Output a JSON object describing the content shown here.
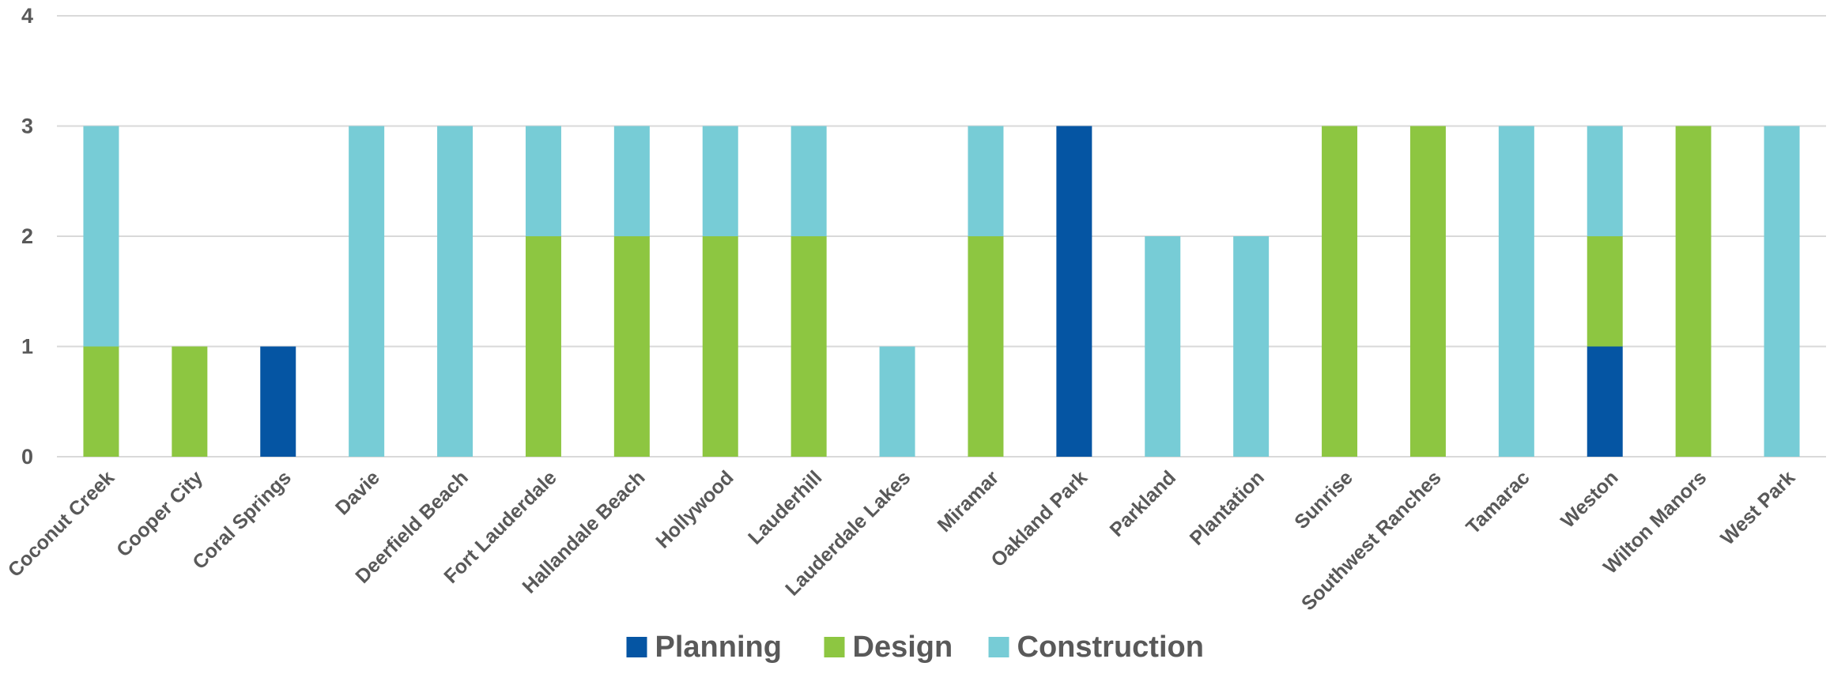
{
  "chart_data": {
    "type": "bar",
    "stacked": true,
    "title": "",
    "xlabel": "",
    "ylabel": "",
    "ylim": [
      0,
      4
    ],
    "yticks": [
      0,
      1,
      2,
      3,
      4
    ],
    "grid": true,
    "legend_position": "bottom",
    "categories": [
      "Coconut Creek",
      "Cooper City",
      "Coral Springs",
      "Davie",
      "Deerfield Beach",
      "Fort Lauderdale",
      "Hallandale Beach",
      "Hollywood",
      "Lauderhill",
      "Lauderdale Lakes",
      "Miramar",
      "Oakland Park",
      "Parkland",
      "Plantation",
      "Sunrise",
      "Southwest Ranches",
      "Tamarac",
      "Weston",
      "Wilton Manors",
      "West Park"
    ],
    "series": [
      {
        "name": "Planning",
        "color": "#0555A3",
        "values": [
          0,
          0,
          1,
          0,
          0,
          0,
          0,
          0,
          0,
          0,
          0,
          3,
          0,
          0,
          0,
          0,
          0,
          1,
          0,
          0
        ]
      },
      {
        "name": "Design",
        "color": "#8DC641",
        "values": [
          1,
          1,
          0,
          0,
          0,
          2,
          2,
          2,
          2,
          0,
          2,
          0,
          0,
          0,
          3,
          3,
          0,
          1,
          3,
          0
        ]
      },
      {
        "name": "Construction",
        "color": "#77CCD6",
        "values": [
          2,
          0,
          0,
          3,
          3,
          1,
          1,
          1,
          1,
          1,
          1,
          0,
          2,
          2,
          0,
          0,
          3,
          1,
          0,
          3
        ]
      }
    ]
  }
}
